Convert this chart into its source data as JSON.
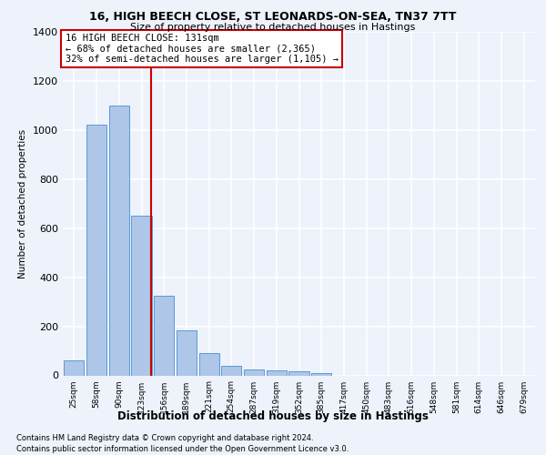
{
  "title1": "16, HIGH BEECH CLOSE, ST LEONARDS-ON-SEA, TN37 7TT",
  "title2": "Size of property relative to detached houses in Hastings",
  "xlabel": "Distribution of detached houses by size in Hastings",
  "ylabel": "Number of detached properties",
  "footnote1": "Contains HM Land Registry data © Crown copyright and database right 2024.",
  "footnote2": "Contains public sector information licensed under the Open Government Licence v3.0.",
  "categories": [
    "25sqm",
    "58sqm",
    "90sqm",
    "123sqm",
    "156sqm",
    "189sqm",
    "221sqm",
    "254sqm",
    "287sqm",
    "319sqm",
    "352sqm",
    "385sqm",
    "417sqm",
    "450sqm",
    "483sqm",
    "516sqm",
    "548sqm",
    "581sqm",
    "614sqm",
    "646sqm",
    "679sqm"
  ],
  "values": [
    60,
    1020,
    1100,
    650,
    325,
    185,
    90,
    40,
    25,
    20,
    15,
    10,
    0,
    0,
    0,
    0,
    0,
    0,
    0,
    0,
    0
  ],
  "bar_color": "#aec6e8",
  "bar_edge_color": "#5b9bd5",
  "vline_x": 3.425,
  "annotation_line1": "16 HIGH BEECH CLOSE: 131sqm",
  "annotation_line2": "← 68% of detached houses are smaller (2,365)",
  "annotation_line3": "32% of semi-detached houses are larger (1,105) →",
  "vline_color": "#cc0000",
  "ann_box_facecolor": "#ffffff",
  "ann_box_edgecolor": "#cc0000",
  "ylim": [
    0,
    1400
  ],
  "yticks": [
    0,
    200,
    400,
    600,
    800,
    1000,
    1200,
    1400
  ],
  "bg_color": "#edf2fb",
  "grid_color": "#ffffff"
}
